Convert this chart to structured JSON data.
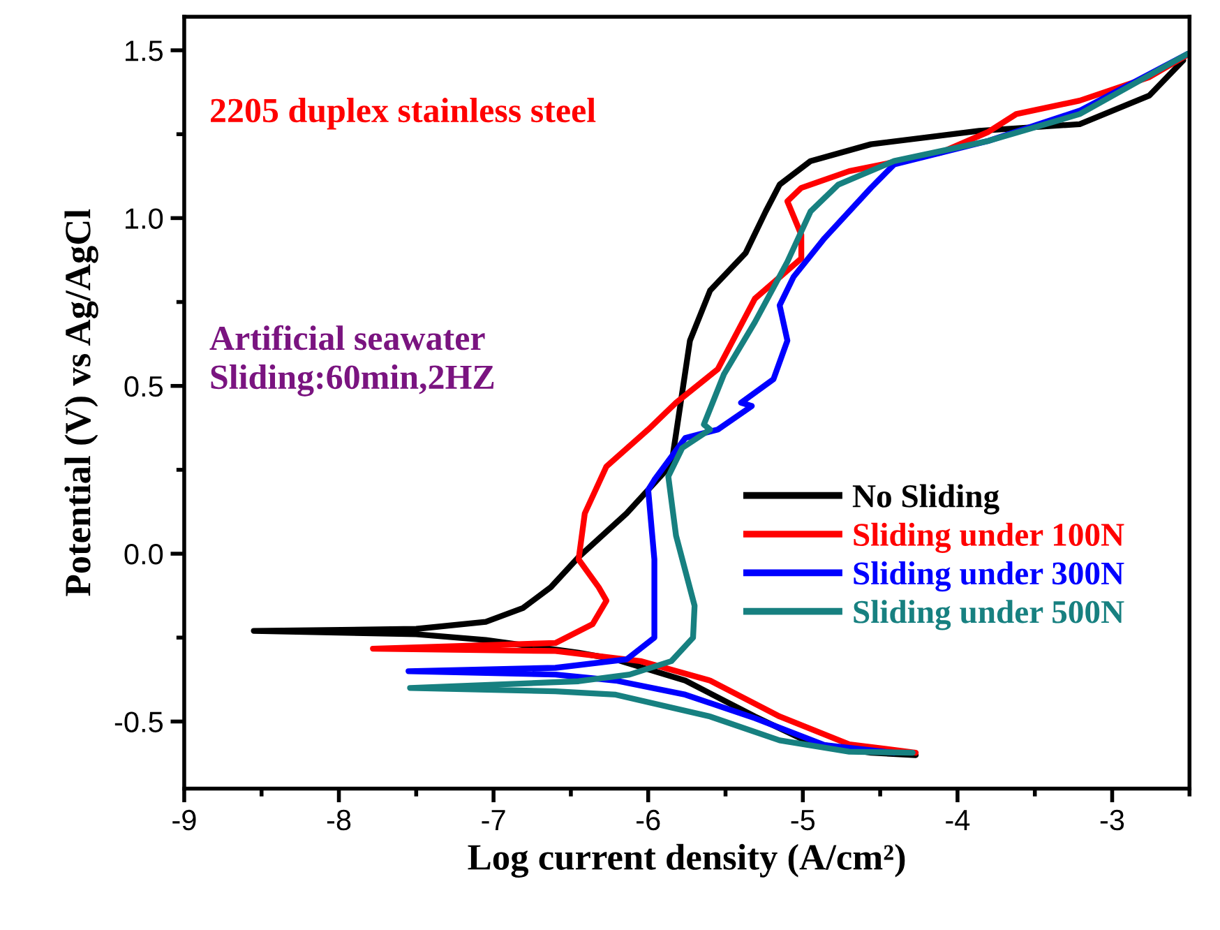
{
  "chart_data": {
    "type": "line",
    "xlabel": "Log current density (A/cm²)",
    "ylabel": "Potential (V) vs Ag/AgCl",
    "annotations": [
      "2205 duplex stainless steel",
      "Artificial seawater\nSliding:60min,2HZ"
    ],
    "xlim": [
      -9,
      -2.5
    ],
    "ylim": [
      -0.7,
      1.6
    ],
    "xticks": [
      -9,
      -8,
      -7,
      -6,
      -5,
      -4,
      -3
    ],
    "yticks": [
      -0.5,
      {
        "value": 0,
        "label": "0.0"
      },
      0.5,
      {
        "value": 1,
        "label": "1.0"
      },
      1.5
    ],
    "grid": false,
    "legend": "right",
    "marker": "none",
    "line_style": "solid",
    "series": [
      {
        "name": "No Sliding",
        "color": "#000000",
        "x": [
          -4.27,
          -4.56,
          -4.95,
          -5.31,
          -5.76,
          -6.21,
          -6.45,
          -7.05,
          -7.5,
          -8.55,
          -7.5,
          -7.05,
          -6.81,
          -6.63,
          -6.45,
          -6.14,
          -5.85,
          -5.82,
          -5.73,
          -5.6,
          -5.37,
          -5.24,
          -5.15,
          -4.95,
          -4.56,
          -3.86,
          -3.21,
          -2.76,
          -2.54
        ],
        "values": [
          -0.6,
          -0.593,
          -0.564,
          -0.485,
          -0.378,
          -0.315,
          -0.295,
          -0.257,
          -0.24,
          -0.23,
          -0.224,
          -0.203,
          -0.162,
          -0.1,
          -0.01,
          0.12,
          0.266,
          0.357,
          0.635,
          0.784,
          0.896,
          1.02,
          1.1,
          1.17,
          1.22,
          1.26,
          1.28,
          1.365,
          1.47
        ]
      },
      {
        "name": "Sliding under 100N",
        "color": "#ff0000",
        "x": [
          -4.27,
          -4.7,
          -5.15,
          -5.6,
          -6.05,
          -6.6,
          -7.78,
          -6.6,
          -6.36,
          -6.27,
          -6.32,
          -6.45,
          -6.41,
          -6.27,
          -6.0,
          -5.82,
          -5.55,
          -5.31,
          -5.01,
          -5.01,
          -5.1,
          -5.01,
          -4.7,
          -4.11,
          -3.8,
          -3.62,
          -3.21,
          -2.76,
          -2.5
        ],
        "values": [
          -0.593,
          -0.568,
          -0.485,
          -0.378,
          -0.32,
          -0.29,
          -0.283,
          -0.266,
          -0.21,
          -0.14,
          -0.1,
          -0.017,
          0.12,
          0.26,
          0.37,
          0.45,
          0.55,
          0.76,
          0.88,
          0.95,
          1.05,
          1.09,
          1.14,
          1.195,
          1.257,
          1.31,
          1.35,
          1.42,
          1.49
        ]
      },
      {
        "name": "Sliding under 300N",
        "color": "#0000ff",
        "x": [
          -4.41,
          -4.86,
          -5.31,
          -5.76,
          -6.21,
          -6.6,
          -7.55,
          -6.6,
          -6.14,
          -5.96,
          -5.96,
          -6.0,
          -5.96,
          -5.76,
          -5.55,
          -5.33,
          -5.4,
          -5.19,
          -5.1,
          -5.15,
          -5.06,
          -4.86,
          -4.56,
          -4.41,
          -3.8,
          -3.21,
          -2.51
        ],
        "values": [
          -0.593,
          -0.57,
          -0.49,
          -0.42,
          -0.378,
          -0.36,
          -0.35,
          -0.34,
          -0.315,
          -0.25,
          -0.017,
          0.19,
          0.22,
          0.345,
          0.37,
          0.44,
          0.45,
          0.52,
          0.635,
          0.74,
          0.825,
          0.94,
          1.09,
          1.16,
          1.23,
          1.32,
          1.49
        ]
      },
      {
        "name": "Sliding under 500N",
        "color": "#178080",
        "x": [
          -4.29,
          -4.7,
          -5.15,
          -5.6,
          -6.21,
          -6.6,
          -7.54,
          -6.45,
          -6.12,
          -5.85,
          -5.71,
          -5.7,
          -5.82,
          -5.87,
          -5.78,
          -5.6,
          -5.64,
          -5.51,
          -5.31,
          -5.1,
          -4.95,
          -4.77,
          -4.41,
          -3.8,
          -3.21,
          -2.51
        ],
        "values": [
          -0.593,
          -0.59,
          -0.556,
          -0.485,
          -0.42,
          -0.41,
          -0.4,
          -0.38,
          -0.36,
          -0.32,
          -0.25,
          -0.155,
          0.054,
          0.23,
          0.315,
          0.37,
          0.385,
          0.535,
          0.69,
          0.87,
          1.02,
          1.1,
          1.17,
          1.23,
          1.31,
          1.49
        ]
      }
    ]
  }
}
